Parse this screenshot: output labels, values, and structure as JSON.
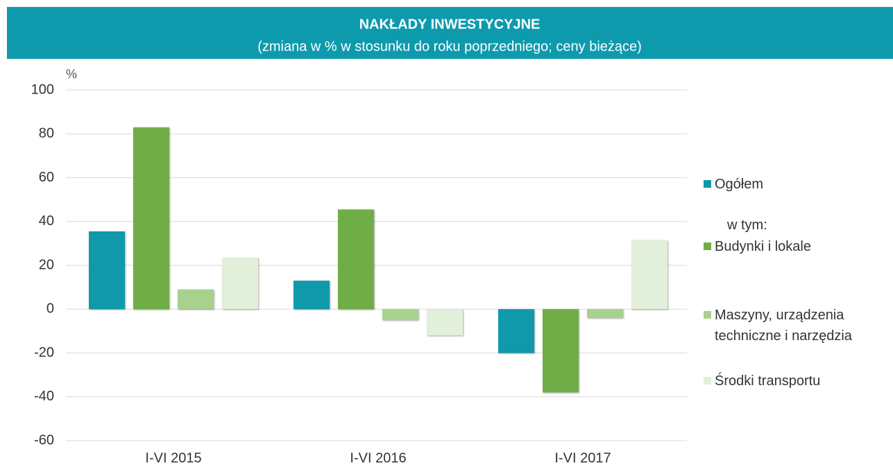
{
  "chart_data": {
    "type": "bar",
    "title": "NAKŁADY  INWESTYCYJNE",
    "subtitle": "(zmiana w % w stosunku do roku poprzedniego; ceny bieżące)",
    "y_label": "%",
    "legend_note": "w tym:",
    "categories": [
      "I-VI 2015",
      "I-VI 2016",
      "I-VI 2017"
    ],
    "series": [
      {
        "name": "Ogółem",
        "color": "#1099ab",
        "values": [
          35.5,
          13,
          -20
        ]
      },
      {
        "name": "Budynki i lokale",
        "color": "#70ad47",
        "values": [
          83,
          45.5,
          -38
        ]
      },
      {
        "name": "Maszyny, urządzenia techniczne i narzędzia",
        "color": "#a9d18e",
        "values": [
          9,
          -5,
          -4
        ]
      },
      {
        "name": "Środki transportu",
        "color": "#e2efda",
        "values": [
          23.5,
          -12,
          31.5
        ]
      }
    ],
    "ylim": [
      -60,
      100
    ],
    "yticks": [
      -60,
      -40,
      -20,
      0,
      20,
      40,
      60,
      80,
      100
    ],
    "grid": true,
    "legend": "right"
  }
}
